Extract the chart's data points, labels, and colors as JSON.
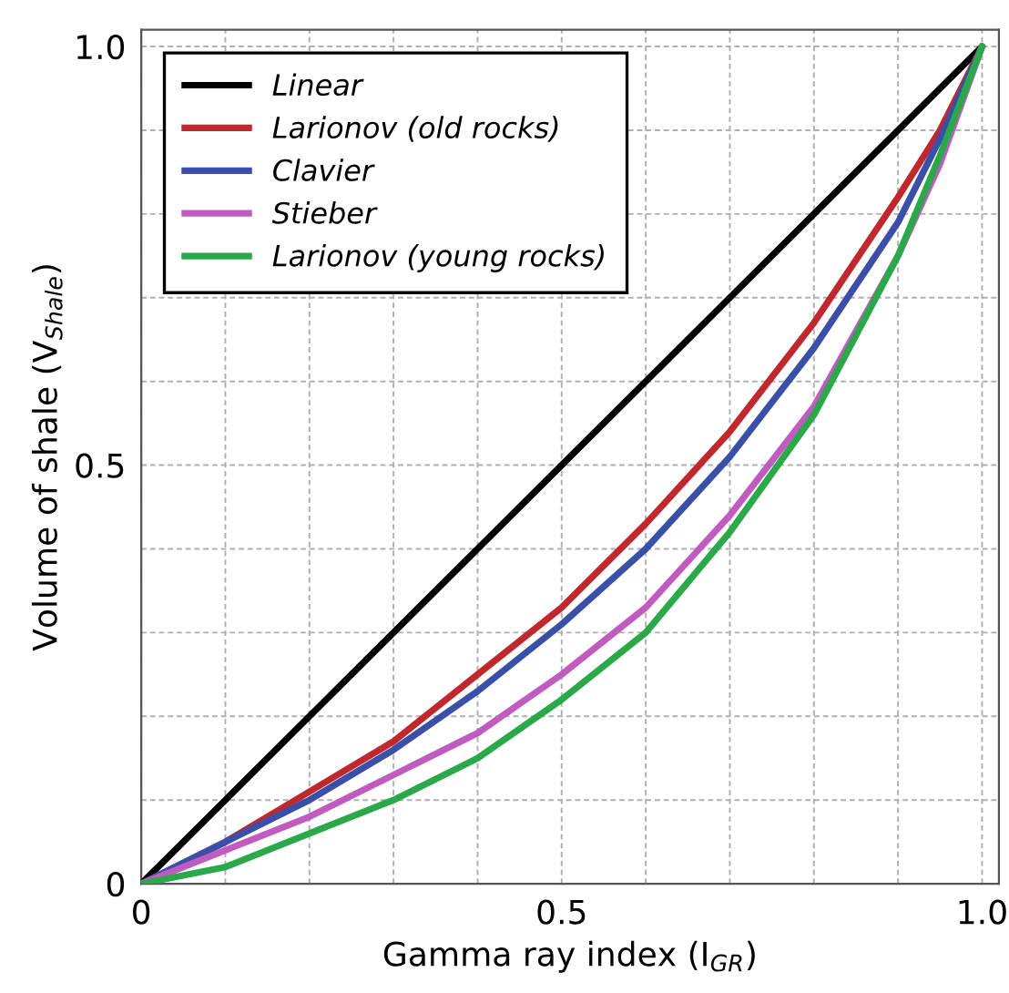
{
  "chart_data": {
    "type": "line",
    "xlabel": "Gamma ray index (I$_{GR}$)",
    "ylabel": "Volume of shale (V$_{Shale}$)",
    "xlim": [
      0,
      1.02
    ],
    "ylim": [
      0,
      1.02
    ],
    "xticks": [
      0,
      {
        "value": 0.1,
        "label": null
      },
      {
        "value": 0.2,
        "label": null
      },
      {
        "value": 0.3,
        "label": null
      },
      {
        "value": 0.4,
        "label": null
      },
      0.5,
      {
        "value": 0.6,
        "label": null
      },
      {
        "value": 0.7,
        "label": null
      },
      {
        "value": 0.8,
        "label": null
      },
      {
        "value": 0.9,
        "label": null
      },
      {
        "value": 1.0,
        "label": "1.0"
      }
    ],
    "yticks": [
      0,
      {
        "value": 0.1,
        "label": null
      },
      {
        "value": 0.2,
        "label": null
      },
      {
        "value": 0.3,
        "label": null
      },
      {
        "value": 0.4,
        "label": null
      },
      0.5,
      {
        "value": 0.6,
        "label": null
      },
      {
        "value": 0.7,
        "label": null
      },
      {
        "value": 0.8,
        "label": null
      },
      {
        "value": 0.9,
        "label": null
      },
      {
        "value": 1.0,
        "label": "1.0"
      }
    ],
    "grid": true,
    "legend": "top left",
    "line_style": "solid",
    "marker": "none",
    "x": [
      0,
      0.1,
      0.2,
      0.3,
      0.4,
      0.5,
      0.6,
      0.7,
      0.8,
      0.9,
      0.95,
      1.0
    ],
    "series": [
      {
        "name": "Linear",
        "color": "#000000",
        "values": [
          0,
          0.1,
          0.2,
          0.3,
          0.4,
          0.5,
          0.6,
          0.7,
          0.8,
          0.9,
          0.95,
          1.0
        ]
      },
      {
        "name": "Larionov (old rocks)",
        "color": "#c0282d",
        "values": [
          0,
          0.05,
          0.11,
          0.17,
          0.25,
          0.33,
          0.43,
          0.54,
          0.67,
          0.82,
          0.9,
          1.0
        ]
      },
      {
        "name": "Clavier",
        "color": "#3a50a8",
        "values": [
          0,
          0.05,
          0.1,
          0.16,
          0.23,
          0.31,
          0.4,
          0.51,
          0.64,
          0.79,
          0.89,
          1.0
        ]
      },
      {
        "name": "Stieber",
        "color": "#c05cc0",
        "values": [
          0,
          0.04,
          0.08,
          0.13,
          0.18,
          0.25,
          0.33,
          0.44,
          0.57,
          0.75,
          0.86,
          1.0
        ]
      },
      {
        "name": "Larionov (young rocks)",
        "color": "#2aa84a",
        "values": [
          0,
          0.02,
          0.06,
          0.1,
          0.15,
          0.22,
          0.3,
          0.42,
          0.56,
          0.75,
          0.87,
          1.0
        ]
      }
    ]
  }
}
